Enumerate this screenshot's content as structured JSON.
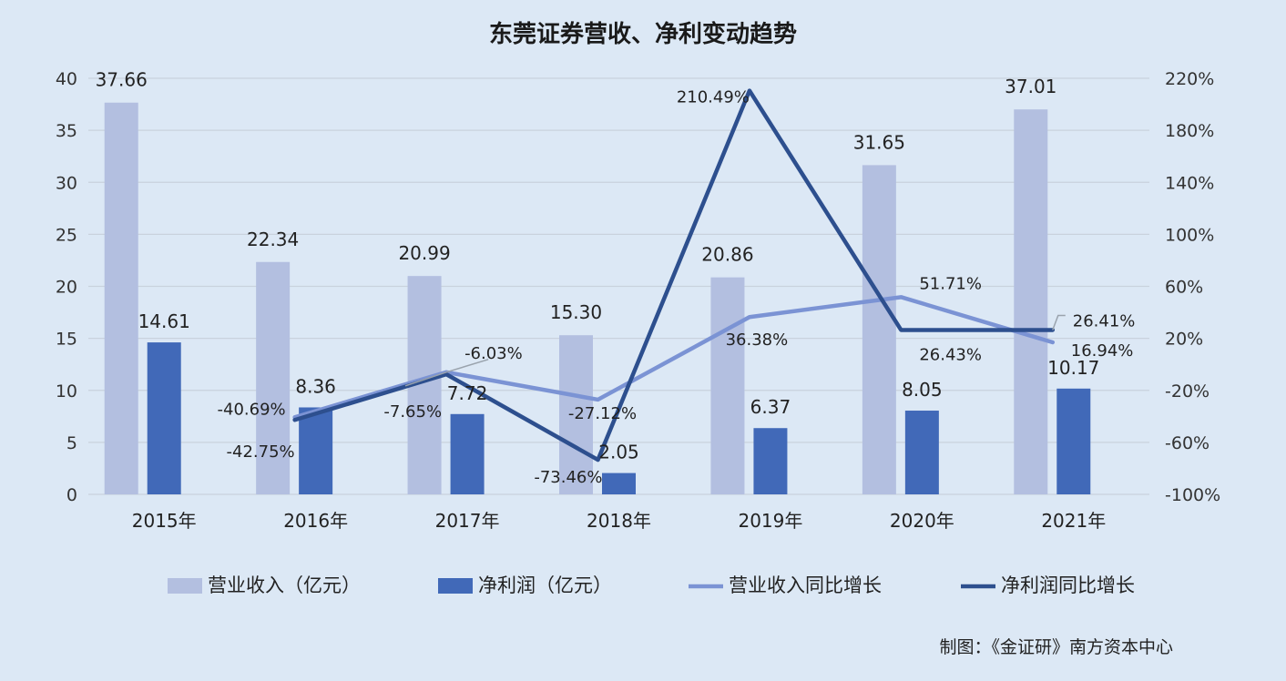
{
  "title": "东莞证券营收、净利变动趋势",
  "credit": "制图：《金证研》南方资本中心",
  "colors": {
    "revenue_bar": "#b3bfe0",
    "profit_bar": "#4169b8",
    "revenue_growth_line": "#7b93d4",
    "profit_growth_line": "#2d4f8e",
    "background": "#dce8f5",
    "grid": "#c9d2dd"
  },
  "chart_data": {
    "type": "bar",
    "categories": [
      "2015年",
      "2016年",
      "2017年",
      "2018年",
      "2019年",
      "2020年",
      "2021年"
    ],
    "y_left": {
      "ylim": [
        0,
        40
      ],
      "ticks": [
        "0",
        "5",
        "10",
        "15",
        "20",
        "25",
        "30",
        "35",
        "40"
      ]
    },
    "y_right": {
      "ylim": [
        -100,
        220
      ],
      "ticks": [
        "-100%",
        "-60%",
        "-20%",
        "20%",
        "60%",
        "100%",
        "140%",
        "180%",
        "220%"
      ]
    },
    "grid": true,
    "legend_position": "bottom",
    "series": [
      {
        "name": "营业收入（亿元）",
        "kind": "bar",
        "axis": "left",
        "values": [
          37.66,
          22.34,
          20.99,
          15.3,
          20.86,
          31.65,
          37.01
        ],
        "labels": [
          "37.66",
          "22.34",
          "20.99",
          "15.30",
          "20.86",
          "31.65",
          "37.01"
        ]
      },
      {
        "name": "净利润（亿元）",
        "kind": "bar",
        "axis": "left",
        "values": [
          14.61,
          8.36,
          7.72,
          2.05,
          6.37,
          8.05,
          10.17
        ],
        "labels": [
          "14.61",
          "8.36",
          "7.72",
          "2.05",
          "6.37",
          "8.05",
          "10.17"
        ]
      },
      {
        "name": "营业收入同比增长",
        "kind": "line",
        "axis": "right",
        "values": [
          null,
          -40.69,
          -6.03,
          -27.12,
          36.38,
          51.71,
          16.94
        ],
        "labels": [
          null,
          "-40.69%",
          "-6.03%",
          "-27.12%",
          "36.38%",
          "51.71%",
          "16.94%"
        ]
      },
      {
        "name": "净利润同比增长",
        "kind": "line",
        "axis": "right",
        "values": [
          null,
          -42.75,
          -7.65,
          -73.46,
          210.49,
          26.43,
          26.41
        ],
        "labels": [
          null,
          "-42.75%",
          "-7.65%",
          "-73.46%",
          "210.49%",
          "26.43%",
          "26.41%"
        ]
      }
    ]
  }
}
